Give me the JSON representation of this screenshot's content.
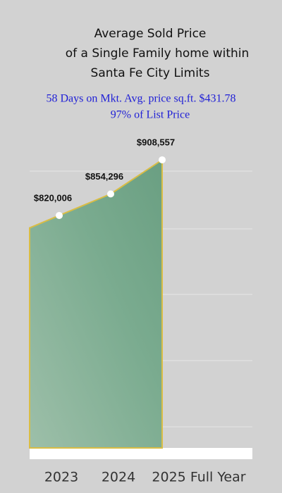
{
  "chart_data": {
    "type": "area",
    "title": [
      "Average Sold Price",
      "of a Single Family home within",
      "Santa Fe City Limits"
    ],
    "subtitle": [
      "58 Days on Mkt. Avg. price sq.ft. $431.78",
      "97% of List Price"
    ],
    "categories": [
      "2023",
      "2024",
      "2025 Full Year"
    ],
    "values": [
      820006,
      854296,
      908557
    ],
    "value_labels": [
      "$820,006",
      "$854,296",
      "$908,557"
    ],
    "color": "#6fa386",
    "line_color": "#d9bd45",
    "ylim": [
      450000,
      950000
    ]
  }
}
